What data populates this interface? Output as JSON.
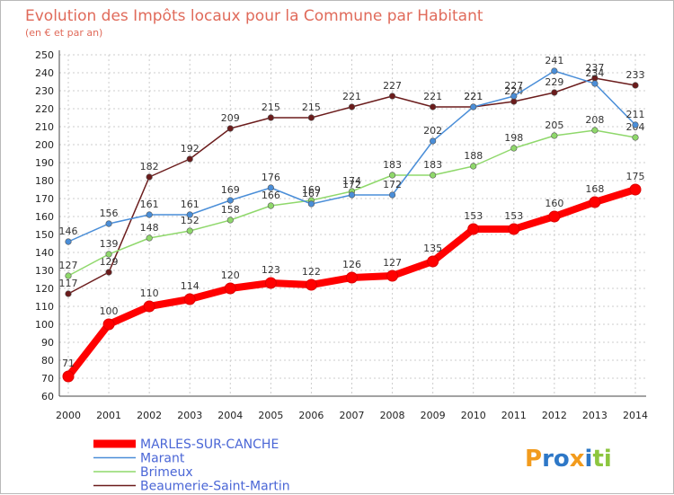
{
  "chart_data": {
    "type": "line",
    "title": "Evolution des Impôts locaux pour la Commune par Habitant",
    "subtitle": "(en € et par an)",
    "xlabel": "",
    "ylabel": "",
    "categories": [
      "2000",
      "2001",
      "2002",
      "2003",
      "2004",
      "2005",
      "2006",
      "2007",
      "2008",
      "2009",
      "2010",
      "2011",
      "2012",
      "2013",
      "2014"
    ],
    "ylim": [
      60,
      250
    ],
    "yticks": [
      60,
      70,
      80,
      90,
      100,
      110,
      120,
      130,
      140,
      150,
      160,
      170,
      180,
      190,
      200,
      210,
      220,
      230,
      240,
      250
    ],
    "grid": true,
    "legend_position": "bottom-left",
    "series": [
      {
        "name": "Beaumerie-Saint-Martin",
        "color": "#6b1c1c",
        "values": [
          117,
          129,
          182,
          192,
          209,
          215,
          215,
          221,
          227,
          221,
          221,
          224,
          229,
          237,
          233
        ]
      },
      {
        "name": "Brimeux",
        "color": "#8fd86b",
        "values": [
          127,
          139,
          148,
          152,
          158,
          166,
          169,
          174,
          183,
          183,
          188,
          198,
          205,
          208,
          204
        ]
      },
      {
        "name": "Marant",
        "color": "#4a8ed8",
        "values": [
          146,
          156,
          161,
          161,
          169,
          176,
          167,
          172,
          172,
          202,
          221,
          227,
          241,
          234,
          211
        ]
      },
      {
        "name": "MARLES-SUR-CANCHE",
        "color": "#ff0000",
        "values": [
          71,
          100,
          110,
          114,
          120,
          123,
          122,
          126,
          127,
          135,
          153,
          153,
          160,
          168,
          175
        ]
      }
    ],
    "legend": [
      "MARLES-SUR-CANCHE",
      "Marant",
      "Brimeux",
      "Beaumerie-Saint-Martin"
    ],
    "logo_text": "Proxiti"
  }
}
